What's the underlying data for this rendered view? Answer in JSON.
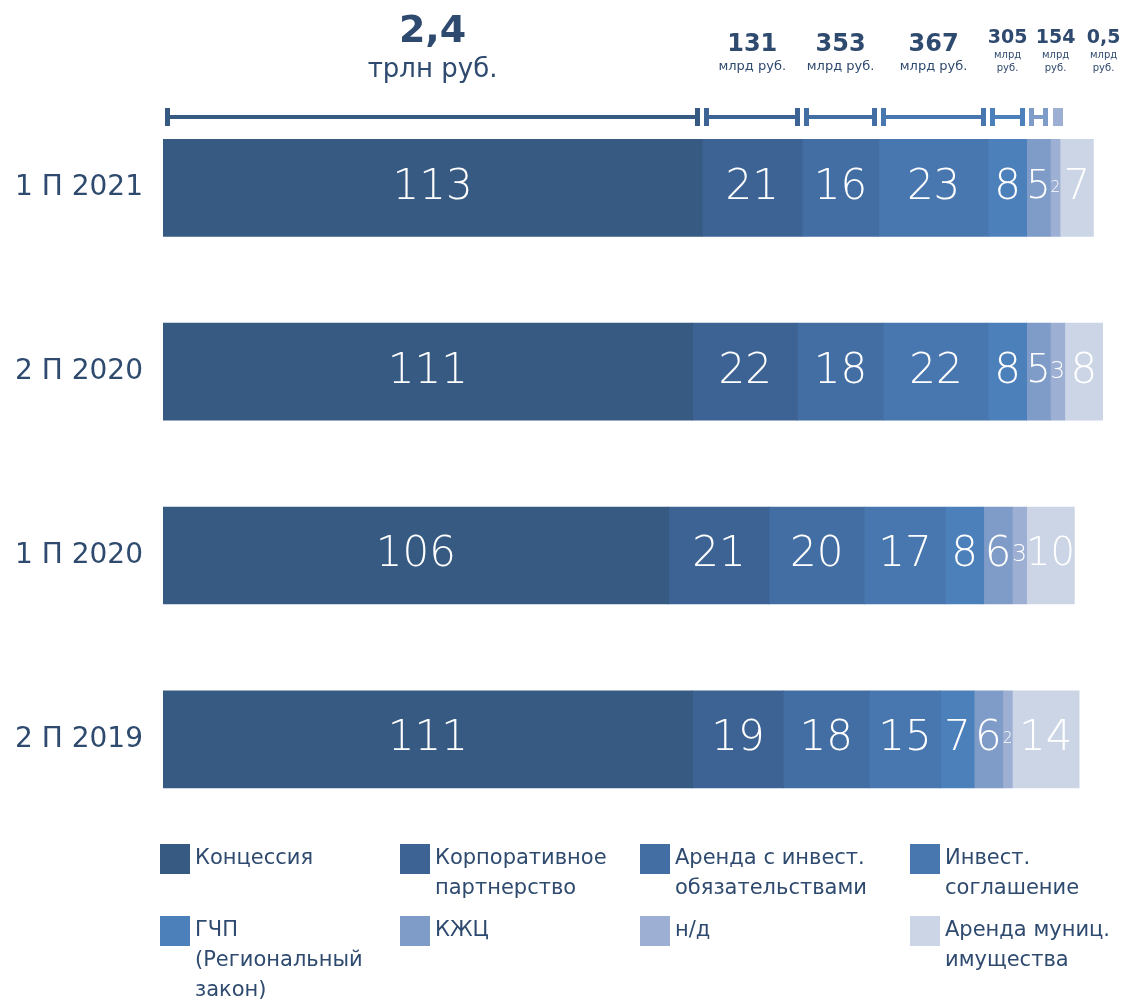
{
  "chart_data": {
    "type": "bar",
    "orientation": "horizontal",
    "stacked": true,
    "data_labels": true,
    "tick_labels": "y",
    "legend": "bottom",
    "categories": [
      "1 П 2021",
      "2 П 2020",
      "1 П 2020",
      "2 П 2019"
    ],
    "xlim": [
      0,
      197
    ],
    "series": [
      {
        "name": "Концессия",
        "color": "#365a82",
        "values": [
          113,
          111,
          106,
          111
        ]
      },
      {
        "name": "Корпоративное партнерство",
        "color": "#3d6394",
        "values": [
          21,
          22,
          21,
          19
        ]
      },
      {
        "name": "Аренда с инвест. обязательствами",
        "color": "#436ea3",
        "values": [
          16,
          18,
          20,
          18
        ]
      },
      {
        "name": "Инвест. соглашение",
        "color": "#4876ae",
        "values": [
          23,
          22,
          17,
          15
        ]
      },
      {
        "name": "ГЧП (Региональный закон)",
        "color": "#4c80bb",
        "values": [
          8,
          8,
          8,
          7
        ]
      },
      {
        "name": "КЖЦ",
        "color": "#7f9bc7",
        "values": [
          5,
          5,
          6,
          6
        ]
      },
      {
        "name": "н/д",
        "color": "#9db0d4",
        "values": [
          2,
          3,
          3,
          2
        ]
      },
      {
        "name": "Аренда муниц. имущества",
        "color": "#cbd5e6",
        "values": [
          7,
          8,
          10,
          14
        ]
      }
    ],
    "annotations": [
      "2,4 трлн руб.",
      "131 млрд руб.",
      "353 млрд руб.",
      "367 млрд руб.",
      "305 млрд руб.",
      "154 млрд руб.",
      "0,5 млрд руб."
    ]
  }
}
